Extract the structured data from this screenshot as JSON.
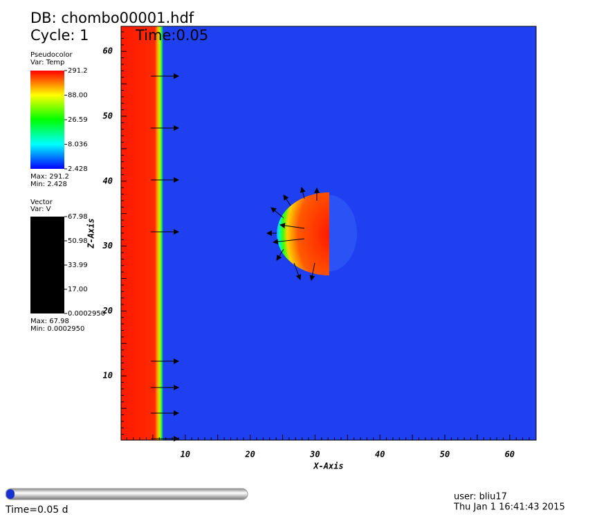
{
  "header": {
    "db": "DB: chombo00001.hdf",
    "cycle": "Cycle: 1",
    "time": "Time:0.05"
  },
  "pseudocolor_legend": {
    "title": "Pseudocolor",
    "var": "Var: Temp",
    "labels": [
      "291.2",
      "88.00",
      "26.59",
      "8.036",
      "2.428"
    ],
    "max": "Max:  291.2",
    "min": "Min:  2.428"
  },
  "vector_legend": {
    "title": "Vector",
    "var": "Var: V",
    "labels": [
      "67.98",
      "50.98",
      "33.99",
      "17.00",
      "0.0002950"
    ],
    "max": "Max:  67.98",
    "min": "Min:  0.0002950"
  },
  "x_axis": {
    "label": "X-Axis",
    "ticks": [
      "10",
      "20",
      "30",
      "40",
      "50",
      "60"
    ]
  },
  "z_axis": {
    "label": "Z-Axis",
    "ticks": [
      "10",
      "20",
      "30",
      "40",
      "50",
      "60"
    ]
  },
  "footer": {
    "slider_label": "Time=0.05 d",
    "user": "user: bliu17",
    "date": "Thu Jan  1 16:41:43 2015"
  }
}
